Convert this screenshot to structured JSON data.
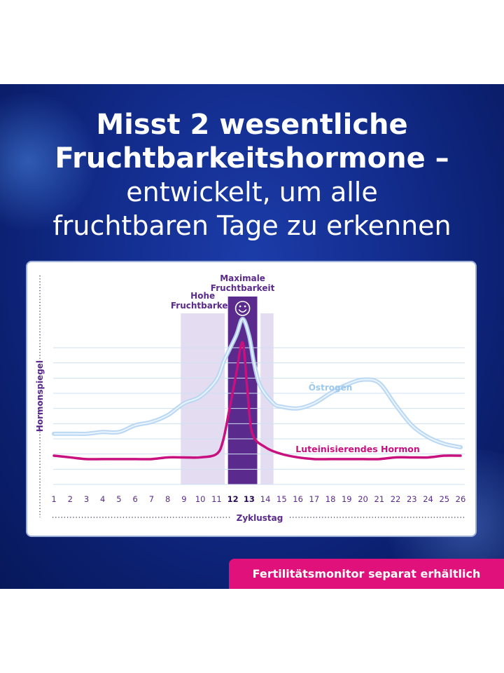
{
  "headline": {
    "line1": "Misst 2 wesentliche",
    "line2": "Fruchtbarkeitshormone –",
    "line3": "entwickelt, um alle",
    "line4": "fruchtbaren Tage zu erkennen"
  },
  "footer_badge": "Fertilitätsmonitor separat erhältlich",
  "colors": {
    "banner_bg": "#132d8e",
    "high_zone": "#e4dcf0",
    "peak_zone": "#5a2a8c",
    "oestrogen": "#b6d6f2",
    "lh": "#c8107f",
    "label_purple": "#5a2a8c",
    "badge": "#e0117a"
  },
  "chart_data": {
    "type": "line",
    "xlabel": "Zyklustag",
    "ylabel": "Hormonspiegel",
    "x": [
      1,
      2,
      3,
      4,
      5,
      6,
      7,
      8,
      9,
      10,
      11,
      12,
      13,
      14,
      15,
      16,
      17,
      18,
      19,
      20,
      21,
      22,
      23,
      24,
      25,
      26
    ],
    "highlight_ticks": [
      12,
      13
    ],
    "ylim": [
      0,
      100
    ],
    "grid": true,
    "zones": [
      {
        "label_line1": "Hohe",
        "label_line2": "Fruchtbarkeit",
        "from": 8.8,
        "to": 11.5,
        "kind": "high"
      },
      {
        "label_line1": "Maximale",
        "label_line2": "Fruchtbarkeit",
        "from": 11.7,
        "to": 13.5,
        "kind": "peak",
        "icon": "smiley-icon"
      },
      {
        "label_line1": "",
        "label_line2": "",
        "from": 13.7,
        "to": 14.5,
        "kind": "high"
      }
    ],
    "series": [
      {
        "name": "Östrogen",
        "key": "oestrogen",
        "points": [
          [
            1,
            30
          ],
          [
            2,
            30
          ],
          [
            3,
            30
          ],
          [
            4,
            31
          ],
          [
            5,
            31
          ],
          [
            6,
            35
          ],
          [
            7,
            37
          ],
          [
            8,
            41
          ],
          [
            9,
            48
          ],
          [
            10,
            52
          ],
          [
            11,
            62
          ],
          [
            11.5,
            74
          ],
          [
            12.2,
            88
          ],
          [
            12.6,
            98
          ],
          [
            13,
            88
          ],
          [
            13.3,
            72
          ],
          [
            13.7,
            58
          ],
          [
            14.5,
            48
          ],
          [
            15,
            46
          ],
          [
            16,
            45
          ],
          [
            17,
            48
          ],
          [
            18,
            54
          ],
          [
            19,
            59
          ],
          [
            20,
            62
          ],
          [
            21,
            60
          ],
          [
            22,
            47
          ],
          [
            23,
            35
          ],
          [
            24,
            28
          ],
          [
            25,
            24
          ],
          [
            26,
            22
          ]
        ]
      },
      {
        "name": "Luteinisierendes Hormon",
        "key": "lh",
        "points": [
          [
            1,
            17
          ],
          [
            2,
            16
          ],
          [
            3,
            15
          ],
          [
            4,
            15
          ],
          [
            5,
            15
          ],
          [
            6,
            15
          ],
          [
            7,
            15
          ],
          [
            8,
            16
          ],
          [
            9,
            16
          ],
          [
            10,
            16
          ],
          [
            11,
            18
          ],
          [
            11.4,
            26
          ],
          [
            11.8,
            45
          ],
          [
            12.2,
            65
          ],
          [
            12.6,
            84
          ],
          [
            12.9,
            55
          ],
          [
            13.2,
            30
          ],
          [
            14,
            22
          ],
          [
            15,
            18
          ],
          [
            16,
            16
          ],
          [
            17,
            15
          ],
          [
            18,
            15
          ],
          [
            19,
            15
          ],
          [
            20,
            15
          ],
          [
            21,
            15
          ],
          [
            22,
            16
          ],
          [
            23,
            16
          ],
          [
            24,
            16
          ],
          [
            25,
            17
          ],
          [
            26,
            17
          ]
        ]
      }
    ]
  }
}
